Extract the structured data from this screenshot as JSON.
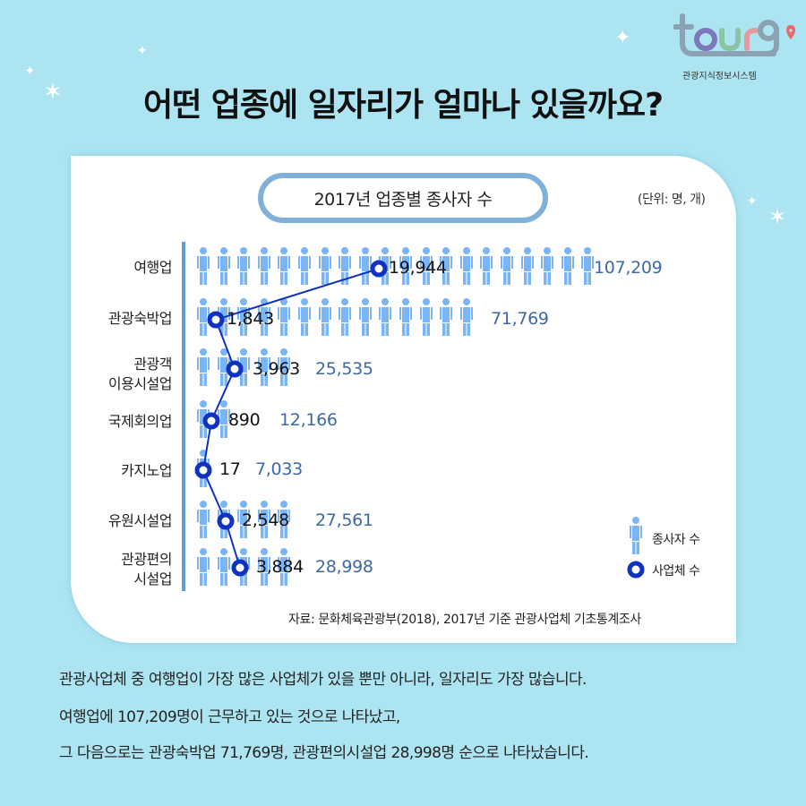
{
  "logo": {
    "wordmark": "tour9",
    "subtitle": "관광지식정보시스템",
    "colors": {
      "t": "#8aa2b2",
      "o": "#7d78b8",
      "u": "#8cc3a4",
      "r": "#e59b9b",
      "9": "#8aa2b2",
      "pin": "#e86b6b"
    }
  },
  "header": {
    "title": "어떤 업종에 일자리가 얼마나 있을까요?"
  },
  "chart": {
    "title": "2017년 업종별 종사자 수",
    "unit": "(단위: 명, 개)",
    "legend": {
      "employees": "종사자 수",
      "businesses": "사업체 수"
    },
    "source": "자료: 문화체육관광부(2018), 2017년 기준 관광사업체 기초통계조사",
    "rows": [
      {
        "label_lines": [
          "여행업"
        ],
        "employees": "107,209",
        "businesses": "19,944",
        "icons": 20
      },
      {
        "label_lines": [
          "관광숙박업"
        ],
        "employees": "71,769",
        "businesses": "1,843",
        "icons": 14
      },
      {
        "label_lines": [
          "관광객",
          "이용시설업"
        ],
        "employees": "25,535",
        "businesses": "3,963",
        "icons": 5
      },
      {
        "label_lines": [
          "국제회의업"
        ],
        "employees": "12,166",
        "businesses": "890",
        "icons": 2
      },
      {
        "label_lines": [
          "카지노업"
        ],
        "employees": "7,033",
        "businesses": "17",
        "icons": 1
      },
      {
        "label_lines": [
          "유원시설업"
        ],
        "employees": "27,561",
        "businesses": "2,548",
        "icons": 5
      },
      {
        "label_lines": [
          "관광편의",
          "시설업"
        ],
        "employees": "28,998",
        "businesses": "3,884",
        "icons": 5
      }
    ],
    "colors": {
      "person": "#7ab6f7",
      "marker": "#1032c0",
      "employee_text": "#3d6aa6",
      "axis": "#5ba0d0",
      "pill_border": "#7fb1d8"
    }
  },
  "chart_data": {
    "type": "bar",
    "title": "2017년 업종별 종사자 수",
    "unit": "(단위: 명, 개)",
    "categories": [
      "여행업",
      "관광숙박업",
      "관광객 이용시설업",
      "국제회의업",
      "카지노업",
      "유원시설업",
      "관광편의시설업"
    ],
    "series": [
      {
        "name": "종사자 수",
        "style": "pictogram",
        "values": [
          107209,
          71769,
          25535,
          12166,
          7033,
          27561,
          28998
        ]
      },
      {
        "name": "사업체 수",
        "style": "line-with-markers",
        "values": [
          19944,
          1843,
          3963,
          890,
          17,
          2548,
          3884
        ]
      }
    ],
    "orientation": "horizontal",
    "legend_position": "bottom-right",
    "grid": false,
    "source": "자료: 문화체육관광부(2018), 2017년 기준 관광사업체 기초통계조사"
  },
  "description": {
    "lines": [
      "관광사업체 중 여행업이 가장 많은 사업체가 있을 뿐만 아니라, 일자리도 가장 많습니다.",
      "여행업에 107,209명이 근무하고 있는 것으로 나타났고,",
      "그 다음으로는 관광숙박업 71,769명, 관광편의시설업 28,998명 순으로 나타났습니다."
    ]
  }
}
